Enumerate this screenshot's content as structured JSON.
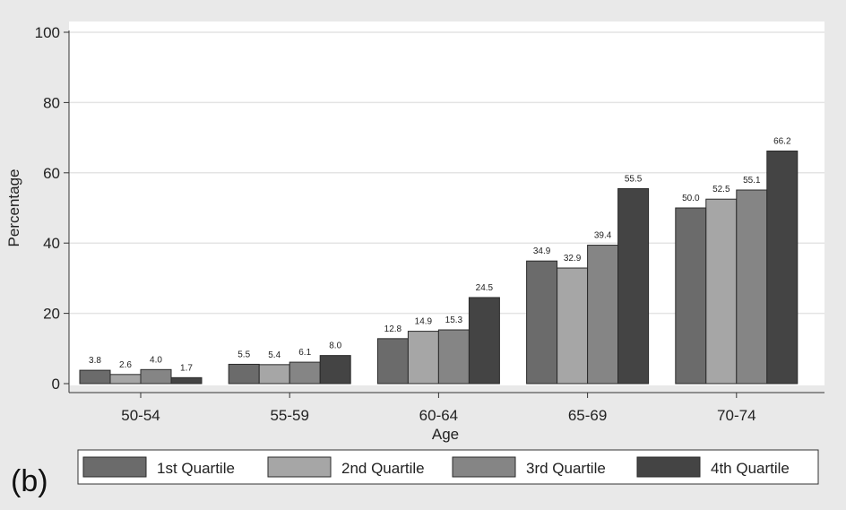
{
  "panel_label": "(b)",
  "colors": {
    "outer_background": "#e9e9e9",
    "plot_background": "#ffffff",
    "gridline": "#e4e4e4",
    "axis": "#333333"
  },
  "chart_data": {
    "type": "bar",
    "title": "",
    "xlabel": "Age",
    "ylabel": "Percentage",
    "ylim": [
      0,
      100
    ],
    "yticks": [
      0,
      20,
      40,
      60,
      80,
      100
    ],
    "grid": true,
    "legend_position": "bottom",
    "categories": [
      "50-54",
      "55-59",
      "60-64",
      "65-69",
      "70-74"
    ],
    "series": [
      {
        "name": "1st Quartile",
        "color": "#6b6b6b",
        "values": [
          3.8,
          5.5,
          12.8,
          34.9,
          50.0
        ],
        "labels": [
          "3.8",
          "5.5",
          "12.8",
          "34.9",
          "50.0"
        ]
      },
      {
        "name": "2nd Quartile",
        "color": "#a6a6a6",
        "values": [
          2.6,
          5.4,
          14.9,
          32.9,
          52.5
        ],
        "labels": [
          "2.6",
          "5.4",
          "14.9",
          "32.9",
          "52.5"
        ]
      },
      {
        "name": "3rd Quartile",
        "color": "#858585",
        "values": [
          4.0,
          6.1,
          15.3,
          39.4,
          55.1
        ],
        "labels": [
          "4.0",
          "6.1",
          "15.3",
          "39.4",
          "55.1"
        ]
      },
      {
        "name": "4th Quartile",
        "color": "#444444",
        "values": [
          1.7,
          8.0,
          24.5,
          55.5,
          66.2
        ],
        "labels": [
          "1.7",
          "8.0",
          "24.5",
          "55.5",
          "66.2"
        ]
      }
    ]
  }
}
